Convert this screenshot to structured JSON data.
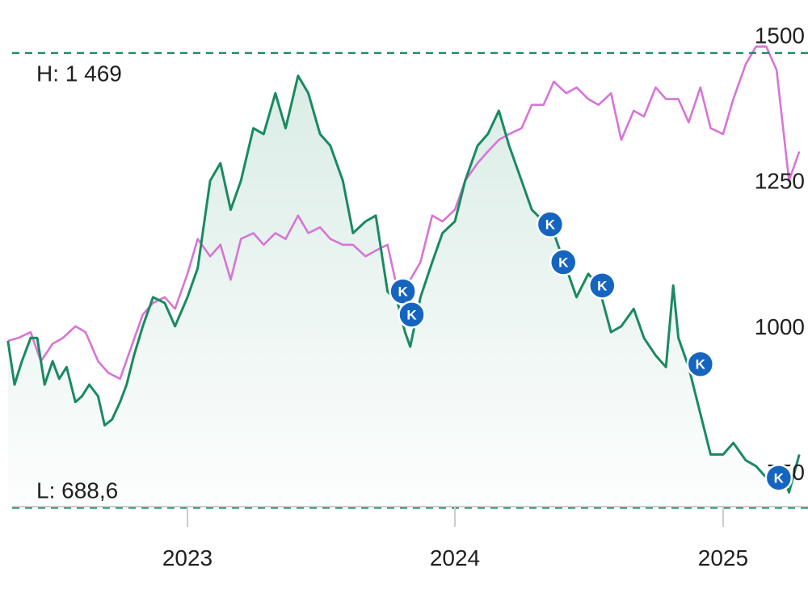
{
  "chart_data": {
    "type": "line",
    "x_axis": {
      "ticks": [
        "2023",
        "2024",
        "2025"
      ]
    },
    "y_axis": {
      "ticks": [
        750,
        1000,
        1250,
        1500
      ],
      "position": "right",
      "ylim": [
        520,
        1560
      ]
    },
    "reference_lines": {
      "high": {
        "label": "H: 1 469",
        "value": 1469
      },
      "low": {
        "label": "L: 688,6",
        "value": 688.6
      }
    },
    "colors": {
      "primary": "#1a8a60",
      "primary_fill": "#1a8a60",
      "comparison": "#d774d7",
      "marker": "#1565c0",
      "grid": "#cccccc",
      "reference": "#1a8a60"
    },
    "series": [
      {
        "role": "primary",
        "color": "#1a8a60",
        "filled": true,
        "points": [
          [
            "2022-05-01",
            975
          ],
          [
            "2022-05-10",
            900
          ],
          [
            "2022-05-20",
            940
          ],
          [
            "2022-06-01",
            980
          ],
          [
            "2022-06-10",
            980
          ],
          [
            "2022-06-20",
            900
          ],
          [
            "2022-07-01",
            940
          ],
          [
            "2022-07-10",
            910
          ],
          [
            "2022-07-20",
            930
          ],
          [
            "2022-08-01",
            870
          ],
          [
            "2022-08-10",
            880
          ],
          [
            "2022-08-20",
            900
          ],
          [
            "2022-09-01",
            880
          ],
          [
            "2022-09-10",
            830
          ],
          [
            "2022-09-20",
            840
          ],
          [
            "2022-10-01",
            870
          ],
          [
            "2022-10-10",
            900
          ],
          [
            "2022-10-20",
            950
          ],
          [
            "2022-11-01",
            1000
          ],
          [
            "2022-11-15",
            1050
          ],
          [
            "2022-12-01",
            1040
          ],
          [
            "2022-12-15",
            1000
          ],
          [
            "2023-01-01",
            1050
          ],
          [
            "2023-01-15",
            1100
          ],
          [
            "2023-02-01",
            1250
          ],
          [
            "2023-02-15",
            1280
          ],
          [
            "2023-03-01",
            1200
          ],
          [
            "2023-03-15",
            1250
          ],
          [
            "2023-04-01",
            1340
          ],
          [
            "2023-04-15",
            1330
          ],
          [
            "2023-05-01",
            1400
          ],
          [
            "2023-05-15",
            1340
          ],
          [
            "2023-06-01",
            1430
          ],
          [
            "2023-06-15",
            1400
          ],
          [
            "2023-07-01",
            1330
          ],
          [
            "2023-07-15",
            1310
          ],
          [
            "2023-08-01",
            1250
          ],
          [
            "2023-08-15",
            1160
          ],
          [
            "2023-09-01",
            1180
          ],
          [
            "2023-09-15",
            1190
          ],
          [
            "2023-10-01",
            1060
          ],
          [
            "2023-10-15",
            1040
          ],
          [
            "2023-10-25",
            990
          ],
          [
            "2023-11-01",
            965
          ],
          [
            "2023-11-15",
            1050
          ],
          [
            "2023-12-01",
            1110
          ],
          [
            "2023-12-15",
            1160
          ],
          [
            "2024-01-01",
            1180
          ],
          [
            "2024-01-15",
            1250
          ],
          [
            "2024-02-01",
            1310
          ],
          [
            "2024-02-15",
            1330
          ],
          [
            "2024-03-01",
            1370
          ],
          [
            "2024-03-15",
            1310
          ],
          [
            "2024-04-01",
            1250
          ],
          [
            "2024-04-15",
            1200
          ],
          [
            "2024-05-01",
            1180
          ],
          [
            "2024-05-15",
            1160
          ],
          [
            "2024-06-01",
            1100
          ],
          [
            "2024-06-15",
            1050
          ],
          [
            "2024-07-01",
            1090
          ],
          [
            "2024-07-15",
            1070
          ],
          [
            "2024-08-01",
            990
          ],
          [
            "2024-08-15",
            1000
          ],
          [
            "2024-09-01",
            1030
          ],
          [
            "2024-09-15",
            980
          ],
          [
            "2024-10-01",
            950
          ],
          [
            "2024-10-15",
            930
          ],
          [
            "2024-10-25",
            1070
          ],
          [
            "2024-11-01",
            980
          ],
          [
            "2024-11-15",
            930
          ],
          [
            "2024-12-01",
            850
          ],
          [
            "2024-12-15",
            780
          ],
          [
            "2025-01-01",
            780
          ],
          [
            "2025-01-15",
            800
          ],
          [
            "2025-02-01",
            770
          ],
          [
            "2025-02-15",
            760
          ],
          [
            "2025-03-01",
            740
          ],
          [
            "2025-03-15",
            730
          ],
          [
            "2025-03-25",
            740
          ],
          [
            "2025-04-01",
            715
          ],
          [
            "2025-04-15",
            780
          ]
        ]
      },
      {
        "role": "comparison",
        "color": "#d774d7",
        "filled": false,
        "points": [
          [
            "2022-05-01",
            975
          ],
          [
            "2022-05-15",
            980
          ],
          [
            "2022-06-01",
            990
          ],
          [
            "2022-06-15",
            940
          ],
          [
            "2022-07-01",
            970
          ],
          [
            "2022-07-15",
            980
          ],
          [
            "2022-08-01",
            1000
          ],
          [
            "2022-08-15",
            990
          ],
          [
            "2022-09-01",
            940
          ],
          [
            "2022-09-15",
            920
          ],
          [
            "2022-10-01",
            910
          ],
          [
            "2022-10-15",
            960
          ],
          [
            "2022-11-01",
            1020
          ],
          [
            "2022-11-15",
            1040
          ],
          [
            "2022-12-01",
            1050
          ],
          [
            "2022-12-15",
            1030
          ],
          [
            "2023-01-01",
            1090
          ],
          [
            "2023-01-15",
            1150
          ],
          [
            "2023-02-01",
            1120
          ],
          [
            "2023-02-15",
            1140
          ],
          [
            "2023-03-01",
            1080
          ],
          [
            "2023-03-15",
            1150
          ],
          [
            "2023-04-01",
            1160
          ],
          [
            "2023-04-15",
            1140
          ],
          [
            "2023-05-01",
            1160
          ],
          [
            "2023-05-15",
            1150
          ],
          [
            "2023-06-01",
            1190
          ],
          [
            "2023-06-15",
            1160
          ],
          [
            "2023-07-01",
            1170
          ],
          [
            "2023-07-15",
            1150
          ],
          [
            "2023-08-01",
            1140
          ],
          [
            "2023-08-15",
            1140
          ],
          [
            "2023-09-01",
            1120
          ],
          [
            "2023-09-15",
            1130
          ],
          [
            "2023-10-01",
            1140
          ],
          [
            "2023-10-15",
            1060
          ],
          [
            "2023-11-01",
            1080
          ],
          [
            "2023-11-15",
            1110
          ],
          [
            "2023-12-01",
            1190
          ],
          [
            "2023-12-15",
            1180
          ],
          [
            "2024-01-01",
            1200
          ],
          [
            "2024-01-15",
            1250
          ],
          [
            "2024-02-01",
            1280
          ],
          [
            "2024-02-15",
            1300
          ],
          [
            "2024-03-01",
            1320
          ],
          [
            "2024-03-15",
            1330
          ],
          [
            "2024-04-01",
            1340
          ],
          [
            "2024-04-15",
            1380
          ],
          [
            "2024-05-01",
            1380
          ],
          [
            "2024-05-15",
            1420
          ],
          [
            "2024-06-01",
            1400
          ],
          [
            "2024-06-15",
            1410
          ],
          [
            "2024-07-01",
            1390
          ],
          [
            "2024-07-15",
            1380
          ],
          [
            "2024-08-01",
            1400
          ],
          [
            "2024-08-15",
            1320
          ],
          [
            "2024-09-01",
            1370
          ],
          [
            "2024-09-15",
            1360
          ],
          [
            "2024-10-01",
            1410
          ],
          [
            "2024-10-15",
            1390
          ],
          [
            "2024-11-01",
            1390
          ],
          [
            "2024-11-15",
            1350
          ],
          [
            "2024-12-01",
            1410
          ],
          [
            "2024-12-15",
            1340
          ],
          [
            "2025-01-01",
            1330
          ],
          [
            "2025-01-15",
            1390
          ],
          [
            "2025-02-01",
            1450
          ],
          [
            "2025-02-15",
            1480
          ],
          [
            "2025-03-01",
            1480
          ],
          [
            "2025-03-15",
            1440
          ],
          [
            "2025-04-01",
            1250
          ],
          [
            "2025-04-15",
            1300
          ]
        ]
      }
    ],
    "markers": {
      "label": "K",
      "points": [
        [
          "2023-10-22",
          1060
        ],
        [
          "2023-11-03",
          1020
        ],
        [
          "2024-05-10",
          1175
        ],
        [
          "2024-05-28",
          1110
        ],
        [
          "2024-07-20",
          1070
        ],
        [
          "2024-12-01",
          935
        ],
        [
          "2025-03-18",
          740
        ]
      ]
    }
  }
}
